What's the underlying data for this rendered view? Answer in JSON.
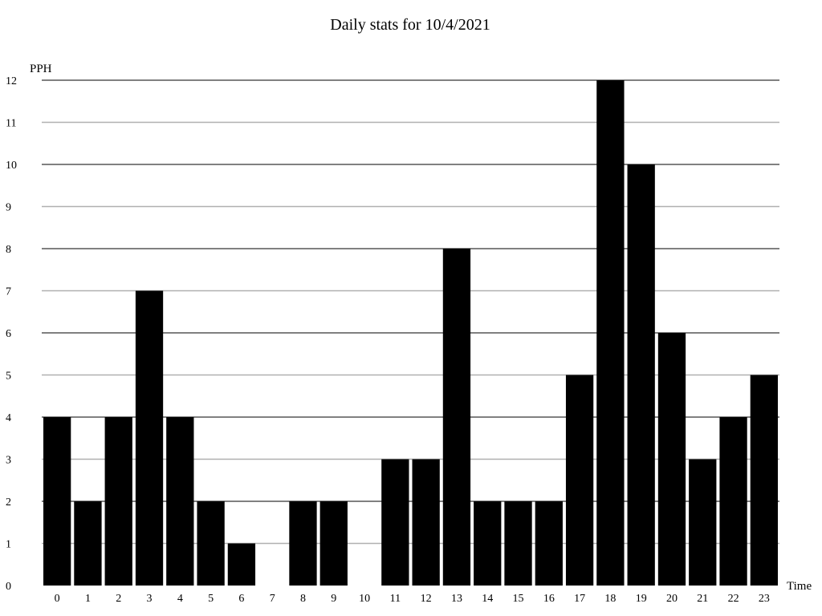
{
  "chart_data": {
    "type": "bar",
    "title": "Daily stats for 10/4/2021",
    "ylabel": "PPH",
    "xlabel": "Time",
    "categories": [
      "0",
      "1",
      "2",
      "3",
      "4",
      "5",
      "6",
      "7",
      "8",
      "9",
      "10",
      "11",
      "12",
      "13",
      "14",
      "15",
      "16",
      "17",
      "18",
      "19",
      "20",
      "21",
      "22",
      "23"
    ],
    "values": [
      4,
      2,
      4,
      7,
      4,
      2,
      1,
      0,
      2,
      2,
      0,
      3,
      3,
      8,
      2,
      2,
      2,
      5,
      12,
      10,
      6,
      3,
      4,
      5
    ],
    "yticks": [
      "0",
      "1",
      "2",
      "3",
      "4",
      "5",
      "6",
      "7",
      "8",
      "9",
      "10",
      "11",
      "12"
    ],
    "ylim": [
      0,
      12
    ],
    "grid": true,
    "legend": "none",
    "colors": {
      "bar": "#000000",
      "grid_major": "#000000",
      "grid_minor": "#b0b0b0",
      "background": "#ffffff"
    }
  }
}
